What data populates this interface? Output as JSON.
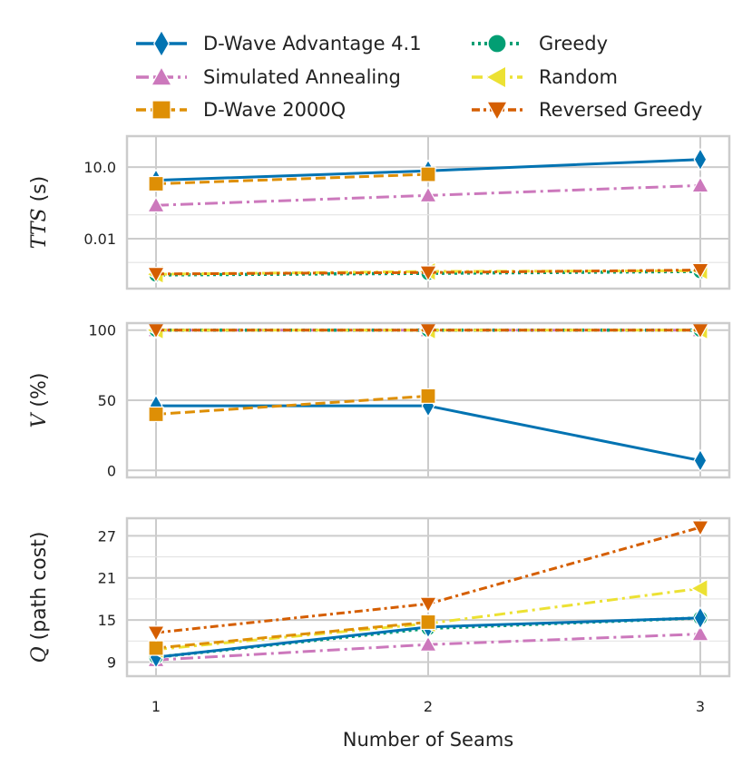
{
  "chart_data": {
    "type": "line",
    "xlabel": "Number of Seams",
    "x": [
      1,
      2,
      3
    ],
    "xticks": [
      "1",
      "2",
      "3"
    ],
    "colors": {
      "dwave41": "#0173b2",
      "sa": "#cc78bc",
      "dwave2000": "#de8f05",
      "greedy": "#029e73",
      "random": "#ece133",
      "revgreedy": "#d55e00",
      "grid": "#cccccc",
      "frame": "#cccccc"
    },
    "legend": {
      "placement": "top",
      "entries": [
        {
          "key": "dwave41",
          "label": "D-Wave Advantage 4.1"
        },
        {
          "key": "greedy",
          "label": "Greedy"
        },
        {
          "key": "sa",
          "label": "Simulated Annealing"
        },
        {
          "key": "random",
          "label": "Random"
        },
        {
          "key": "dwave2000",
          "label": "D-Wave 2000Q"
        },
        {
          "key": "revgreedy",
          "label": "Reversed Greedy"
        }
      ]
    },
    "panels": [
      {
        "id": "tts",
        "ylabel_italic": "TTS",
        "ylabel_rest": " (s)",
        "scale": "log",
        "ylim": [
          8e-05,
          200
        ],
        "yticks": [
          10.0,
          0.01
        ],
        "yticklabels": [
          "10.0",
          "0.01"
        ],
        "series": [
          {
            "key": "dwave41",
            "values": [
              2.8,
              7.0,
              21.0
            ]
          },
          {
            "key": "dwave2000",
            "values": [
              2.0,
              5.0,
              null
            ]
          },
          {
            "key": "sa",
            "values": [
              0.25,
              0.65,
              1.7
            ]
          },
          {
            "key": "greedy",
            "values": [
              0.0003,
              0.00035,
              0.00042
            ]
          },
          {
            "key": "random",
            "values": [
              0.00032,
              0.00042,
              0.00045
            ]
          },
          {
            "key": "revgreedy",
            "values": [
              0.00033,
              0.00038,
              0.00048
            ]
          }
        ]
      },
      {
        "id": "validity",
        "ylabel_italic": "V",
        "ylabel_rest": " (%)",
        "scale": "linear",
        "ylim": [
          -5,
          105
        ],
        "yticks": [
          0,
          50,
          100
        ],
        "yticklabels": [
          "0",
          "50",
          "100"
        ],
        "series": [
          {
            "key": "sa",
            "values": [
              100,
              100,
              100
            ]
          },
          {
            "key": "greedy",
            "values": [
              100,
              100,
              100
            ]
          },
          {
            "key": "random",
            "values": [
              100,
              100,
              100
            ]
          },
          {
            "key": "revgreedy",
            "values": [
              100,
              100,
              100
            ]
          },
          {
            "key": "dwave41",
            "values": [
              46,
              46,
              7
            ]
          },
          {
            "key": "dwave2000",
            "values": [
              40,
              53,
              null
            ]
          }
        ]
      },
      {
        "id": "pathcost",
        "ylabel_italic": "Q",
        "ylabel_rest": " (path cost)",
        "scale": "linear",
        "ylim": [
          7,
          29.5
        ],
        "yticks": [
          9,
          15,
          21,
          27
        ],
        "yticklabels": [
          "9",
          "15",
          "21",
          "27"
        ],
        "series": [
          {
            "key": "sa",
            "values": [
              9.3,
              11.5,
              13.0
            ]
          },
          {
            "key": "greedy",
            "values": [
              9.7,
              13.8,
              15.3
            ]
          },
          {
            "key": "dwave41",
            "values": [
              9.7,
              14.0,
              15.3
            ]
          },
          {
            "key": "random",
            "values": [
              10.8,
              14.5,
              19.5
            ]
          },
          {
            "key": "dwave2000",
            "values": [
              11.0,
              14.7,
              null
            ]
          },
          {
            "key": "revgreedy",
            "values": [
              13.2,
              17.3,
              28.2
            ]
          }
        ]
      }
    ]
  }
}
